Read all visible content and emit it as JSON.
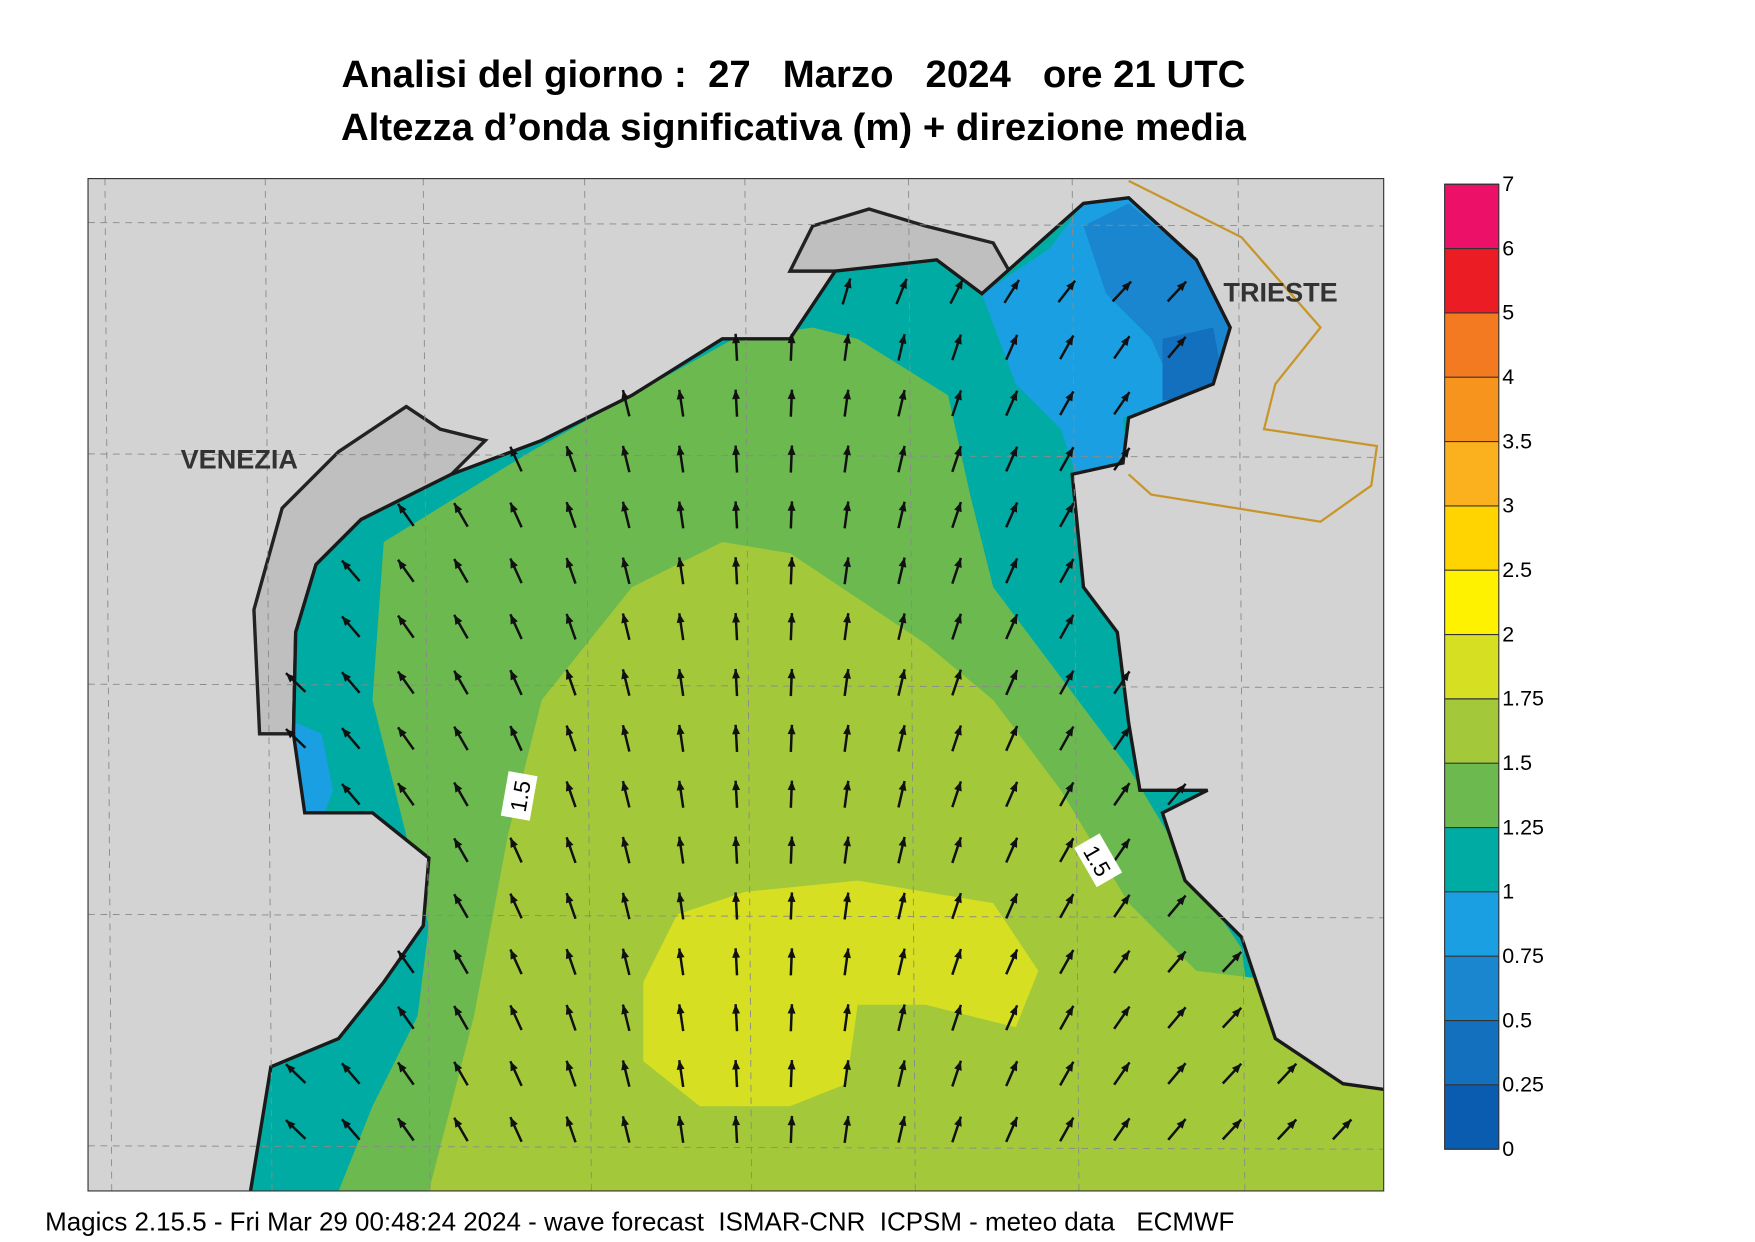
{
  "title": [
    "Analisi del giorno :  27   Marzo   2024   ore 21 UTC",
    "Altezza d’onda significativa (m) + direzione media"
  ],
  "places": [
    "VENEZIA",
    "TRIESTE"
  ],
  "contour_labels": [
    "1.5",
    "1.5"
  ],
  "colorbar": {
    "ticks": [
      0,
      0.25,
      0.5,
      0.75,
      1,
      1.25,
      1.5,
      1.75,
      2,
      2.5,
      3,
      3.5,
      4,
      5,
      6,
      7
    ],
    "colors": [
      "#0a5cb0",
      "#1270be",
      "#1a86d0",
      "#1aa0e2",
      "#00aba3",
      "#6cb94f",
      "#a3c93a",
      "#d6df22",
      "#fff200",
      "#ffd400",
      "#fbb01d",
      "#f7941d",
      "#f37a20",
      "#ec1c24",
      "#ec1068"
    ]
  },
  "footer": "Magics 2.15.5 - Fri Mar 29 00:48:24 2024 - wave forecast  ISMAR-CNR  ICPSM - meteo data   ECMWF"
}
